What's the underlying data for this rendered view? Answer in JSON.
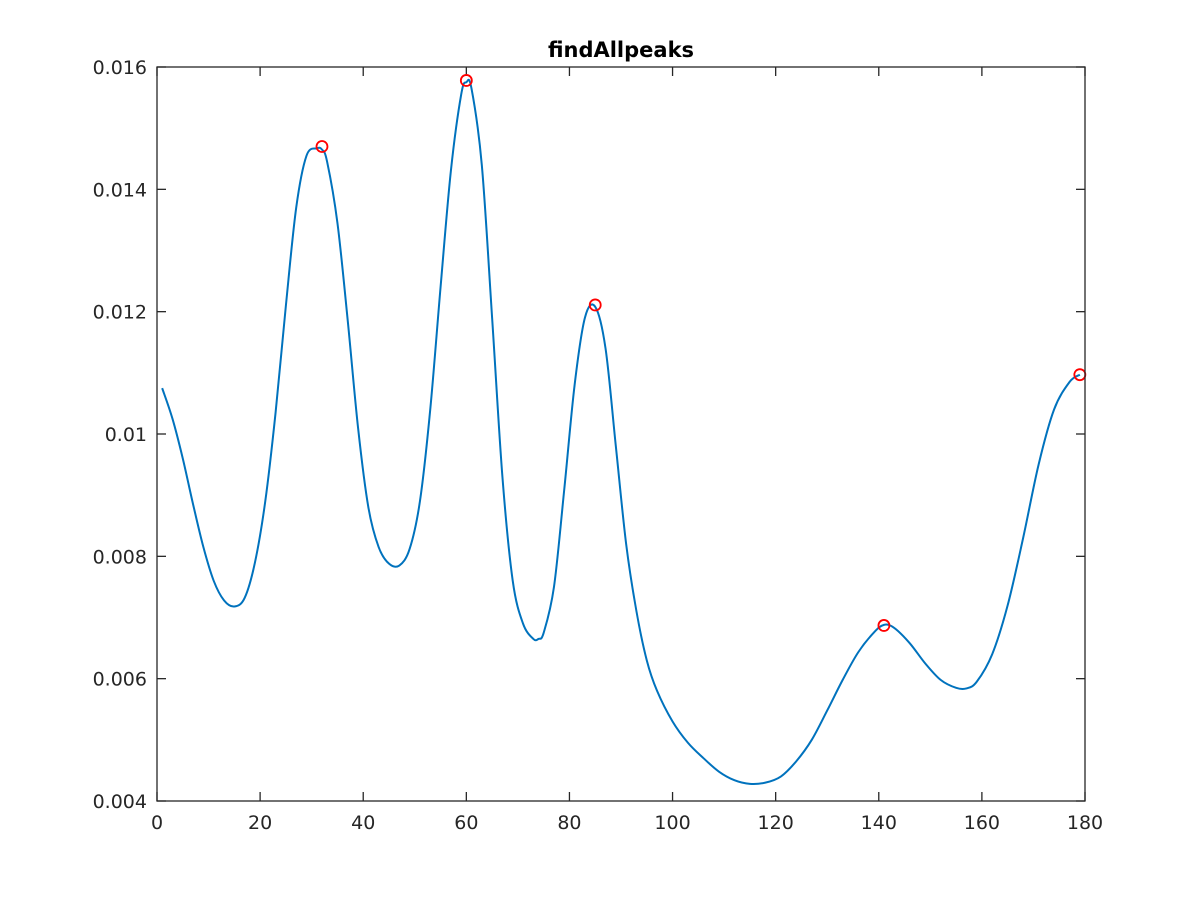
{
  "chart_data": {
    "type": "line",
    "title": "findAllpeaks",
    "xlabel": "",
    "ylabel": "",
    "xlim": [
      0,
      180
    ],
    "ylim": [
      0.004,
      0.016
    ],
    "x_ticks": [
      0,
      20,
      40,
      60,
      80,
      100,
      120,
      140,
      160,
      180
    ],
    "x_tick_labels": [
      "0",
      "20",
      "40",
      "60",
      "80",
      "100",
      "120",
      "140",
      "160",
      "180"
    ],
    "y_ticks": [
      0.004,
      0.006,
      0.008,
      0.01,
      0.012,
      0.014,
      0.016
    ],
    "y_tick_labels": [
      "0.004",
      "0.006",
      "0.008",
      "0.01",
      "0.012",
      "0.014",
      "0.016"
    ],
    "grid": false,
    "series": [
      {
        "color": "#0072BD",
        "x": [
          1,
          3,
          5,
          7,
          9,
          11,
          13,
          15,
          17,
          19,
          21,
          23,
          25,
          27,
          29,
          31,
          32,
          33,
          35,
          37,
          39,
          41,
          43,
          45,
          47,
          49,
          51,
          53,
          55,
          57,
          59,
          60,
          61,
          63,
          65,
          67,
          69,
          71,
          73,
          74,
          75,
          77,
          79,
          81,
          83,
          85,
          87,
          89,
          91,
          93,
          95,
          97,
          100,
          103,
          106,
          109,
          112,
          115,
          118,
          121,
          124,
          127,
          130,
          133,
          136,
          139,
          141,
          143,
          146,
          149,
          152,
          155,
          157,
          159,
          162,
          165,
          168,
          171,
          174,
          177,
          179
        ],
        "y": [
          0.01075,
          0.01025,
          0.0096,
          0.00885,
          0.00815,
          0.0076,
          0.00728,
          0.00718,
          0.00732,
          0.0079,
          0.0089,
          0.01035,
          0.0121,
          0.0137,
          0.01455,
          0.01467,
          0.01465,
          0.01445,
          0.01345,
          0.01185,
          0.0101,
          0.0088,
          0.00815,
          0.00788,
          0.00785,
          0.00812,
          0.0089,
          0.0104,
          0.0124,
          0.0143,
          0.01555,
          0.01575,
          0.01565,
          0.0144,
          0.0119,
          0.0093,
          0.0076,
          0.0069,
          0.00665,
          0.00665,
          0.00675,
          0.0075,
          0.0091,
          0.0108,
          0.0119,
          0.01208,
          0.0114,
          0.0098,
          0.0082,
          0.0071,
          0.0063,
          0.0058,
          0.0053,
          0.00495,
          0.0047,
          0.00448,
          0.00434,
          0.00428,
          0.0043,
          0.0044,
          0.00465,
          0.005,
          0.00548,
          0.00598,
          0.00643,
          0.00675,
          0.00688,
          0.00683,
          0.00658,
          0.00625,
          0.00598,
          0.00585,
          0.00584,
          0.00595,
          0.0064,
          0.0072,
          0.0083,
          0.0095,
          0.0104,
          0.01085,
          0.01097
        ]
      }
    ],
    "peaks": {
      "marker": "circle",
      "color": "#FF0000",
      "x": [
        32,
        60,
        85,
        141,
        179
      ],
      "y": [
        0.0147,
        0.01578,
        0.01211,
        0.00687,
        0.01097
      ]
    }
  }
}
